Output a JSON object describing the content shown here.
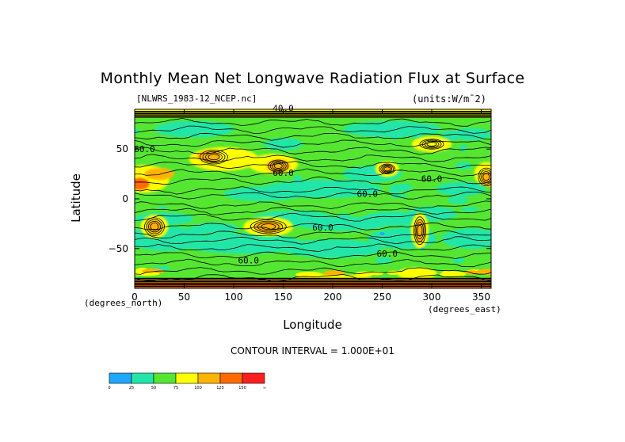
{
  "title": "Monthly Mean Net Longwave Radiation Flux at Surface",
  "file_label": "[NLWRS_1983-12_NCEP.nc]",
  "units_label": "(units:W/m^2)",
  "units_display": "(units:W/m¯2)",
  "xaxis_units_left": "(degrees_north)",
  "xaxis_units_right": "(degrees_east)",
  "contour_interval_text": "CONTOUR INTERVAL = 1.000E+01",
  "chart_data": {
    "type": "heatmap",
    "title": "Monthly Mean Net Longwave Radiation Flux at Surface",
    "xlabel": "Longitude",
    "ylabel": "Latitude",
    "xlim": [
      0,
      360
    ],
    "ylim": [
      -90,
      90
    ],
    "x_ticks": [
      0,
      50,
      100,
      150,
      200,
      250,
      300,
      350
    ],
    "y_ticks": [
      50,
      0,
      -50
    ],
    "contour_interval": 10,
    "colorbar": {
      "levels": [
        0,
        25,
        50,
        75,
        100,
        125,
        150
      ],
      "tick_labels": [
        "0",
        "25",
        "50",
        "75",
        "100",
        "125",
        "150",
        "∞"
      ],
      "colors": [
        "#1fa8ff",
        "#22e6a8",
        "#55e632",
        "#ffff00",
        "#ffb300",
        "#ff6a00",
        "#ff1e1e"
      ]
    },
    "contour_labels": [
      {
        "lon": 150,
        "lat": 88,
        "text": "40.0"
      },
      {
        "lon": 10,
        "lat": 47,
        "text": "60.0"
      },
      {
        "lon": 150,
        "lat": 23,
        "text": "60.0"
      },
      {
        "lon": 300,
        "lat": 17,
        "text": "60.0"
      },
      {
        "lon": 235,
        "lat": 2,
        "text": "60.0"
      },
      {
        "lon": 190,
        "lat": -32,
        "text": "60.0"
      },
      {
        "lon": 255,
        "lat": -58,
        "text": "60.0"
      },
      {
        "lon": 115,
        "lat": -65,
        "text": "60.0"
      }
    ]
  }
}
